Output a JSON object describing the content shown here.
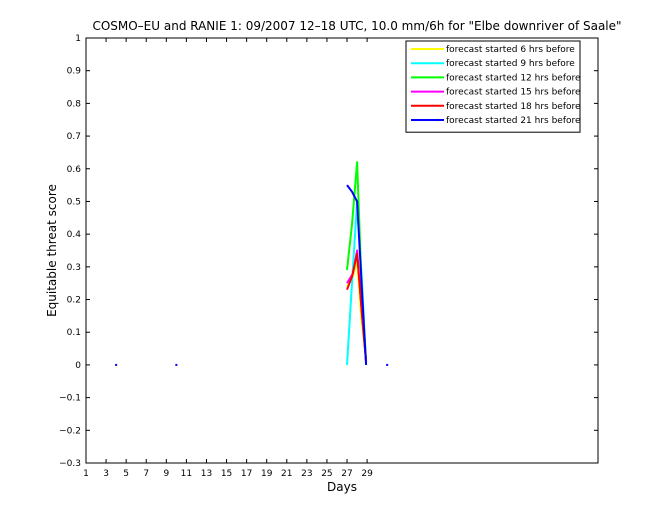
{
  "chart_data": {
    "type": "line",
    "title": "COSMO–EU and RANIE 1: 09/2007 12–18 UTC, 10.0 mm/6h for \"Elbe downriver of Saale\"",
    "xlabel": "Days",
    "ylabel": "Equitable threat score",
    "xlim": [
      1,
      52
    ],
    "ylim": [
      -0.3,
      1
    ],
    "xticks": [
      1,
      3,
      5,
      7,
      9,
      11,
      13,
      15,
      17,
      19,
      21,
      23,
      25,
      27,
      29
    ],
    "yticks": [
      -0.3,
      -0.2,
      -0.1,
      0,
      0.1,
      0.2,
      0.3,
      0.4,
      0.5,
      0.6,
      0.7,
      0.8,
      0.9,
      1
    ],
    "ytick_labels": [
      "−0.3",
      "−0.2",
      "−0.1",
      "0",
      "0.1",
      "0.2",
      "0.3",
      "0.4",
      "0.5",
      "0.6",
      "0.7",
      "0.8",
      "0.9",
      "1"
    ],
    "grid": false,
    "legend_position": "top-right",
    "series": [
      {
        "name": "forecast started 6 hrs before",
        "color": "#ffff00",
        "points": [
          [
            27,
            0.24
          ],
          [
            27.6,
            0.27
          ],
          [
            28,
            0.32
          ],
          [
            28.4,
            0.15
          ],
          [
            28.9,
            0.01
          ]
        ]
      },
      {
        "name": "forecast started 9 hrs before",
        "color": "#00ffff",
        "points": [
          [
            27,
            0.0
          ],
          [
            27.6,
            0.3
          ],
          [
            28,
            0.5
          ],
          [
            28.5,
            0.25
          ],
          [
            28.9,
            0.0
          ]
        ]
      },
      {
        "name": "forecast started 12 hrs before",
        "color": "#00ff00",
        "points": [
          [
            27,
            0.29
          ],
          [
            27.5,
            0.43
          ],
          [
            28,
            0.62
          ],
          [
            28.5,
            0.2
          ],
          [
            28.9,
            0.01
          ]
        ]
      },
      {
        "name": "forecast started 15 hrs before",
        "color": "#ff00ff",
        "points": [
          [
            27,
            0.25
          ],
          [
            27.6,
            0.28
          ],
          [
            28,
            0.35
          ],
          [
            28.5,
            0.15
          ],
          [
            28.9,
            0.01
          ]
        ]
      },
      {
        "name": "forecast started 18 hrs before",
        "color": "#ff0000",
        "points": [
          [
            27,
            0.23
          ],
          [
            27.5,
            0.27
          ],
          [
            28,
            0.34
          ],
          [
            28.5,
            0.15
          ],
          [
            28.9,
            0.01
          ]
        ]
      },
      {
        "name": "forecast started 21 hrs before",
        "color": "#0000ff",
        "points": [
          [
            27,
            0.55
          ],
          [
            27.5,
            0.53
          ],
          [
            28,
            0.5
          ],
          [
            28.5,
            0.22
          ],
          [
            28.9,
            0.0
          ]
        ]
      }
    ],
    "isolated_points": [
      {
        "color": "#0000ff",
        "x": 4,
        "y": 0
      },
      {
        "color": "#0000ff",
        "x": 10,
        "y": 0
      },
      {
        "color": "#0000ff",
        "x": 31,
        "y": 0
      }
    ]
  }
}
